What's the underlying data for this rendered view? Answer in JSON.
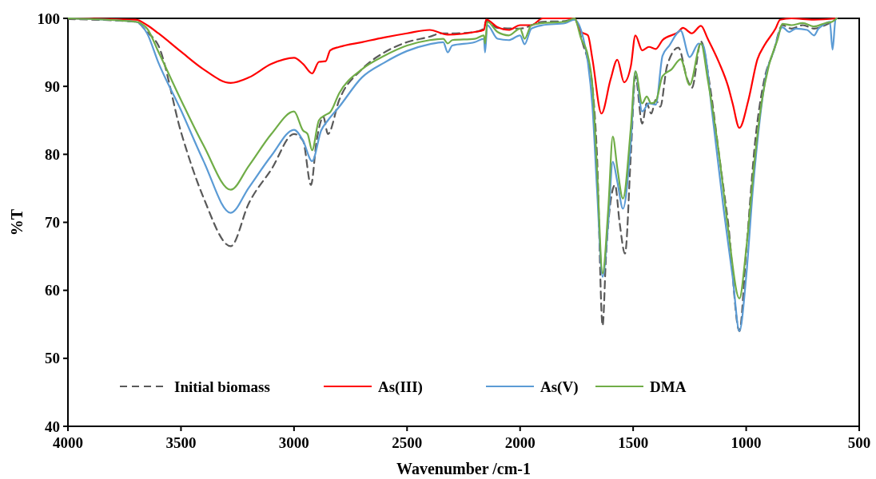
{
  "chart_data": {
    "type": "line",
    "xlabel": "Wavenumber /cm-1",
    "ylabel": "%T",
    "xlim": [
      4000,
      500
    ],
    "xticks": [
      4000,
      3500,
      3000,
      2500,
      2000,
      1500,
      1000,
      500
    ],
    "ylim": [
      40,
      100
    ],
    "yticks": [
      40,
      50,
      60,
      70,
      80,
      90,
      100
    ],
    "grid": false,
    "legend": "bottom",
    "series": [
      {
        "name": "Initial biomass",
        "color": "#595959",
        "line_style": "dashed",
        "x": [
          4000,
          3700,
          3650,
          3600,
          3500,
          3400,
          3280,
          3200,
          3100,
          3000,
          2960,
          2925,
          2900,
          2870,
          2850,
          2800,
          2700,
          2600,
          2500,
          2400,
          2350,
          2300,
          2200,
          2160,
          2150,
          2100,
          2000,
          1900,
          1800,
          1760,
          1720,
          1700,
          1680,
          1660,
          1635,
          1620,
          1600,
          1580,
          1560,
          1536,
          1510,
          1490,
          1460,
          1440,
          1420,
          1400,
          1380,
          1350,
          1300,
          1260,
          1240,
          1200,
          1160,
          1120,
          1100,
          1080,
          1030,
          1000,
          960,
          920,
          880,
          840,
          800,
          750,
          700,
          650,
          620,
          600
        ],
        "values": [
          99.9,
          99.5,
          98,
          96,
          83.3,
          73.6,
          66.5,
          72.8,
          77.8,
          83,
          82,
          75.5,
          82,
          85.5,
          83,
          88,
          92.5,
          95,
          96.5,
          97.3,
          97.8,
          97.8,
          98,
          98.5,
          99.6,
          98.6,
          98.5,
          99.5,
          99.6,
          99.9,
          96,
          93.8,
          90,
          80,
          54.8,
          65,
          73,
          75.5,
          70,
          65.4,
          80,
          91.5,
          84.5,
          87.5,
          86,
          88,
          87,
          93,
          95.7,
          91,
          89.8,
          96.6,
          90,
          80,
          75,
          70,
          54,
          65.7,
          82,
          91,
          95,
          99,
          98.5,
          99,
          98.5,
          99,
          99.5,
          100
        ]
      },
      {
        "name": "As(III)",
        "color": "#ff0000",
        "line_style": "solid",
        "x": [
          4000,
          3700,
          3650,
          3600,
          3500,
          3400,
          3280,
          3200,
          3100,
          3000,
          2960,
          2920,
          2890,
          2860,
          2840,
          2800,
          2700,
          2600,
          2500,
          2400,
          2320,
          2200,
          2160,
          2150,
          2100,
          2050,
          2000,
          1950,
          1900,
          1800,
          1760,
          1730,
          1700,
          1680,
          1640,
          1600,
          1570,
          1540,
          1510,
          1490,
          1460,
          1430,
          1400,
          1370,
          1300,
          1280,
          1240,
          1200,
          1170,
          1120,
          1080,
          1060,
          1030,
          990,
          950,
          920,
          870,
          850,
          800,
          700,
          600
        ],
        "values": [
          100,
          99.8,
          99,
          97.8,
          95.1,
          92.5,
          90.5,
          91.3,
          93.3,
          94.2,
          93.3,
          91.9,
          93.6,
          93.7,
          95.3,
          95.8,
          96.5,
          97.2,
          97.8,
          98.3,
          97.6,
          98,
          98.3,
          99.8,
          98.7,
          98.3,
          99,
          99,
          100,
          100,
          100,
          98,
          97.5,
          94,
          86,
          91,
          93.9,
          90.6,
          93,
          97.5,
          95.3,
          95.8,
          95.5,
          96.8,
          98,
          98.6,
          97.8,
          98.9,
          97,
          93.5,
          90,
          87.5,
          83.9,
          88,
          94,
          96,
          98.5,
          99.8,
          100,
          99.8,
          100
        ]
      },
      {
        "name": "As(V)",
        "color": "#5b9bd5",
        "line_style": "solid",
        "x": [
          4000,
          3700,
          3650,
          3600,
          3500,
          3400,
          3280,
          3200,
          3100,
          3000,
          2960,
          2920,
          2880,
          2850,
          2800,
          2700,
          2600,
          2500,
          2400,
          2340,
          2320,
          2300,
          2200,
          2160,
          2155,
          2145,
          2100,
          2050,
          2000,
          1980,
          1950,
          1900,
          1800,
          1760,
          1720,
          1700,
          1680,
          1660,
          1635,
          1610,
          1590,
          1570,
          1545,
          1510,
          1490,
          1460,
          1430,
          1400,
          1370,
          1340,
          1290,
          1250,
          1210,
          1190,
          1150,
          1100,
          1060,
          1030,
          1000,
          970,
          940,
          910,
          880,
          840,
          810,
          780,
          730,
          700,
          680,
          660,
          630,
          618,
          605,
          600
        ],
        "values": [
          100,
          99.5,
          97.8,
          93.5,
          86.5,
          79,
          71.4,
          75.1,
          79.8,
          83.6,
          82,
          79,
          83.5,
          85,
          87,
          91.3,
          93.5,
          95.2,
          96.2,
          96.5,
          95,
          96,
          96.5,
          97,
          95,
          99,
          97,
          96.8,
          97.5,
          96.2,
          98.5,
          99,
          99.3,
          99.8,
          97,
          93.5,
          87,
          75,
          62,
          70,
          78.9,
          76,
          72,
          82,
          92.2,
          86.3,
          87.5,
          87.3,
          94.5,
          96,
          98.2,
          94.3,
          96.3,
          96,
          86,
          72,
          62,
          54,
          62,
          75,
          85,
          92,
          95,
          98.7,
          98,
          98.5,
          98.3,
          97.5,
          98.5,
          99,
          99.5,
          95.4,
          99.8,
          100
        ]
      },
      {
        "name": "DMA",
        "color": "#70ad47",
        "line_style": "solid",
        "x": [
          4000,
          3700,
          3650,
          3600,
          3500,
          3400,
          3280,
          3200,
          3100,
          3000,
          2960,
          2940,
          2920,
          2890,
          2860,
          2840,
          2800,
          2700,
          2600,
          2500,
          2400,
          2340,
          2320,
          2300,
          2200,
          2160,
          2155,
          2145,
          2100,
          2050,
          2000,
          1980,
          1950,
          1900,
          1800,
          1760,
          1730,
          1700,
          1680,
          1660,
          1635,
          1610,
          1590,
          1570,
          1545,
          1510,
          1490,
          1460,
          1440,
          1420,
          1400,
          1370,
          1330,
          1290,
          1250,
          1200,
          1170,
          1120,
          1080,
          1030,
          1000,
          960,
          930,
          900,
          860,
          840,
          800,
          750,
          700,
          650,
          620,
          600
        ],
        "values": [
          100,
          99.5,
          98.5,
          95.1,
          88,
          81.3,
          74.8,
          78.3,
          83,
          86.3,
          83.5,
          83,
          80.6,
          85,
          85.8,
          86.2,
          89,
          92.5,
          94.5,
          96,
          96.8,
          97,
          96.3,
          96.8,
          97,
          97.5,
          96.3,
          99.5,
          98,
          97.5,
          98.5,
          97,
          99,
          99.3,
          99.5,
          100,
          97,
          94.5,
          90,
          78,
          62.5,
          72,
          82.6,
          78,
          73.5,
          84,
          92.2,
          87.5,
          88.5,
          87.5,
          87.8,
          91.5,
          92.5,
          94,
          90.2,
          96.3,
          91,
          80,
          69,
          58.8,
          66,
          80,
          88,
          93,
          97,
          99.2,
          99,
          99.3,
          98.8,
          99.3,
          99.5,
          100
        ]
      }
    ]
  }
}
